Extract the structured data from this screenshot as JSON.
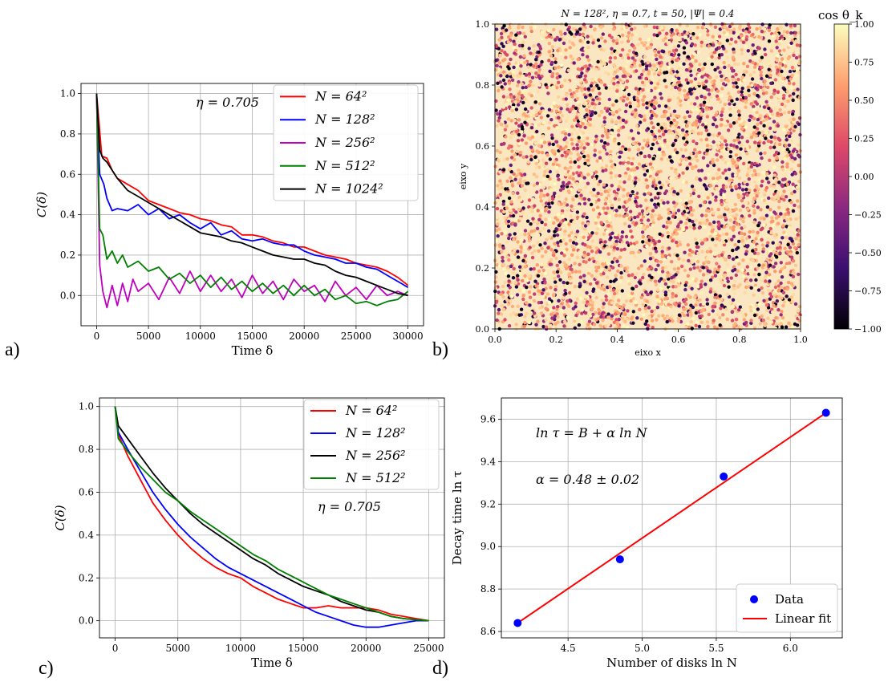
{
  "panel_labels": [
    "a)",
    "b)",
    "c)",
    "d)"
  ],
  "chart_data": [
    {
      "id": "a",
      "type": "line",
      "xlabel": "Time δ",
      "ylabel": "C(δ)",
      "xlim": [
        -1500,
        31500
      ],
      "ylim": [
        -0.15,
        1.05
      ],
      "xticks": [
        0,
        5000,
        10000,
        15000,
        20000,
        25000,
        30000
      ],
      "yticks": [
        0.0,
        0.2,
        0.4,
        0.6,
        0.8,
        1.0
      ],
      "grid": true,
      "legend_position": "top-right",
      "annotation": "η = 0.705",
      "series": [
        {
          "name": "N = 64²",
          "color": "#ff0000",
          "x": [
            0,
            500,
            1000,
            1500,
            2000,
            3000,
            4000,
            5000,
            6000,
            7000,
            8000,
            9000,
            10000,
            11000,
            12000,
            13000,
            14000,
            15000,
            16000,
            17000,
            18000,
            19000,
            20000,
            21000,
            22000,
            23000,
            24000,
            25000,
            26000,
            27000,
            28000,
            29000,
            30000
          ],
          "y": [
            1.0,
            0.69,
            0.68,
            0.62,
            0.58,
            0.55,
            0.52,
            0.47,
            0.45,
            0.43,
            0.41,
            0.4,
            0.38,
            0.37,
            0.35,
            0.34,
            0.3,
            0.3,
            0.29,
            0.27,
            0.26,
            0.24,
            0.24,
            0.22,
            0.2,
            0.19,
            0.18,
            0.16,
            0.15,
            0.14,
            0.12,
            0.09,
            0.05
          ]
        },
        {
          "name": "N = 128²",
          "color": "#0000ff",
          "x": [
            0,
            300,
            700,
            1000,
            1500,
            2000,
            3000,
            4000,
            5000,
            6000,
            7000,
            8000,
            9000,
            10000,
            11000,
            12000,
            13000,
            14000,
            15000,
            16000,
            17000,
            18000,
            19000,
            20000,
            21000,
            22000,
            23000,
            24000,
            25000,
            26000,
            27000,
            28000,
            29000,
            30000
          ],
          "y": [
            1.0,
            0.6,
            0.55,
            0.48,
            0.42,
            0.43,
            0.42,
            0.45,
            0.4,
            0.43,
            0.38,
            0.4,
            0.36,
            0.33,
            0.36,
            0.3,
            0.32,
            0.28,
            0.27,
            0.28,
            0.26,
            0.25,
            0.25,
            0.22,
            0.2,
            0.19,
            0.18,
            0.16,
            0.16,
            0.14,
            0.13,
            0.1,
            0.07,
            0.04
          ]
        },
        {
          "name": "N = 256²",
          "color": "#bf00bf",
          "x": [
            0,
            300,
            600,
            1000,
            1500,
            2000,
            2500,
            3000,
            3500,
            4000,
            5000,
            6000,
            7000,
            8000,
            9000,
            10000,
            11000,
            12000,
            13000,
            14000,
            15000,
            16000,
            17000,
            18000,
            19000,
            20000,
            21000,
            22000,
            23000,
            24000,
            25000,
            26000,
            27000,
            28000,
            29000,
            30000
          ],
          "y": [
            1.0,
            0.15,
            0.02,
            -0.06,
            0.05,
            -0.05,
            0.06,
            -0.03,
            0.08,
            0.02,
            0.06,
            -0.02,
            0.09,
            0.01,
            0.12,
            0.02,
            0.1,
            0.02,
            0.08,
            -0.01,
            0.1,
            0.01,
            0.07,
            -0.02,
            0.08,
            0.02,
            0.05,
            -0.03,
            0.07,
            0.0,
            0.04,
            -0.02,
            0.05,
            0.0,
            0.02,
            0.0
          ]
        },
        {
          "name": "N = 512²",
          "color": "#008000",
          "x": [
            0,
            300,
            600,
            1000,
            1500,
            2000,
            2500,
            3000,
            4000,
            5000,
            6000,
            7000,
            8000,
            9000,
            10000,
            11000,
            12000,
            13000,
            14000,
            15000,
            16000,
            17000,
            18000,
            19000,
            20000,
            21000,
            22000,
            23000,
            24000,
            25000,
            26000,
            27000,
            28000,
            29000,
            30000
          ],
          "y": [
            1.0,
            0.33,
            0.3,
            0.18,
            0.22,
            0.16,
            0.2,
            0.14,
            0.17,
            0.12,
            0.14,
            0.08,
            0.11,
            0.06,
            0.1,
            0.04,
            0.09,
            0.03,
            0.07,
            0.02,
            0.06,
            0.01,
            0.05,
            0.0,
            0.05,
            0.0,
            0.03,
            -0.02,
            0.0,
            -0.04,
            -0.03,
            -0.05,
            -0.03,
            -0.02,
            0.02
          ]
        },
        {
          "name": "N = 1024²",
          "color": "#000000",
          "x": [
            0,
            300,
            600,
            1000,
            2000,
            3000,
            4000,
            5000,
            6000,
            7000,
            8000,
            9000,
            10000,
            11000,
            12000,
            13000,
            14000,
            15000,
            16000,
            17000,
            18000,
            19000,
            20000,
            21000,
            22000,
            23000,
            24000,
            25000,
            26000,
            27000,
            28000,
            29000,
            30000
          ],
          "y": [
            1.0,
            0.72,
            0.68,
            0.66,
            0.58,
            0.52,
            0.49,
            0.46,
            0.43,
            0.4,
            0.37,
            0.34,
            0.31,
            0.3,
            0.29,
            0.27,
            0.26,
            0.24,
            0.22,
            0.2,
            0.19,
            0.18,
            0.18,
            0.16,
            0.15,
            0.12,
            0.1,
            0.09,
            0.07,
            0.05,
            0.03,
            0.01,
            0.0
          ]
        }
      ]
    },
    {
      "id": "b",
      "type": "scatter",
      "title": "N = 128², η = 0.7, t = 50, |Ψ| = 0.4",
      "xlabel": "eixo x",
      "ylabel": "eixo y",
      "xlim": [
        0,
        1
      ],
      "ylim": [
        0,
        1
      ],
      "xticks": [
        0.0,
        0.2,
        0.4,
        0.6,
        0.8,
        1.0
      ],
      "yticks": [
        0.0,
        0.2,
        0.4,
        0.6,
        0.8,
        1.0
      ],
      "colorbar_label": "cos θ_k",
      "colorbar_ticks": [
        1.0,
        0.75,
        0.5,
        0.25,
        0.0,
        -0.25,
        -0.5,
        -0.75,
        -1.0
      ],
      "colormap": "magma",
      "clim": [
        -1,
        1
      ]
    },
    {
      "id": "c",
      "type": "line",
      "xlabel": "Time δ",
      "ylabel": "C(δ)",
      "xlim": [
        -1250,
        26250
      ],
      "ylim": [
        -0.08,
        1.04
      ],
      "xticks": [
        0,
        5000,
        10000,
        15000,
        20000,
        25000
      ],
      "yticks": [
        0.0,
        0.2,
        0.4,
        0.6,
        0.8,
        1.0
      ],
      "grid": true,
      "legend_position": "top-right",
      "annotation": "η = 0.705",
      "series": [
        {
          "name": "N = 64²",
          "color": "#ff0000",
          "x": [
            0,
            250,
            1000,
            2000,
            3000,
            4000,
            5000,
            6000,
            7000,
            8000,
            9000,
            10000,
            11000,
            12000,
            13000,
            14000,
            15000,
            16000,
            17000,
            18000,
            19000,
            20000,
            21000,
            22000,
            23000,
            24000,
            25000
          ],
          "y": [
            1.0,
            0.87,
            0.77,
            0.66,
            0.55,
            0.47,
            0.4,
            0.34,
            0.29,
            0.25,
            0.22,
            0.2,
            0.16,
            0.13,
            0.1,
            0.08,
            0.06,
            0.06,
            0.07,
            0.06,
            0.06,
            0.06,
            0.05,
            0.03,
            0.02,
            0.01,
            0.0
          ]
        },
        {
          "name": "N = 128²",
          "color": "#0000ff",
          "x": [
            0,
            250,
            1000,
            2000,
            3000,
            4000,
            5000,
            6000,
            7000,
            8000,
            9000,
            10000,
            11000,
            12000,
            13000,
            14000,
            15000,
            16000,
            17000,
            18000,
            19000,
            20000,
            21000,
            22000,
            23000,
            24000,
            25000
          ],
          "y": [
            1.0,
            0.88,
            0.8,
            0.7,
            0.6,
            0.52,
            0.45,
            0.39,
            0.34,
            0.29,
            0.25,
            0.22,
            0.19,
            0.16,
            0.13,
            0.1,
            0.07,
            0.04,
            0.02,
            0.0,
            -0.02,
            -0.03,
            -0.03,
            -0.02,
            -0.01,
            0.0,
            0.0
          ]
        },
        {
          "name": "N = 256²",
          "color": "#000000",
          "x": [
            0,
            250,
            1000,
            2000,
            3000,
            4000,
            5000,
            6000,
            7000,
            8000,
            9000,
            10000,
            11000,
            12000,
            13000,
            14000,
            15000,
            16000,
            17000,
            18000,
            19000,
            20000,
            21000,
            22000,
            23000,
            24000,
            25000
          ],
          "y": [
            1.0,
            0.91,
            0.85,
            0.77,
            0.69,
            0.62,
            0.56,
            0.5,
            0.45,
            0.41,
            0.37,
            0.33,
            0.29,
            0.26,
            0.22,
            0.19,
            0.16,
            0.14,
            0.12,
            0.09,
            0.07,
            0.05,
            0.04,
            0.02,
            0.01,
            0.005,
            0.0
          ]
        },
        {
          "name": "N = 512²",
          "color": "#008000",
          "x": [
            0,
            250,
            1000,
            2000,
            3000,
            4000,
            5000,
            6000,
            7000,
            8000,
            9000,
            10000,
            11000,
            12000,
            13000,
            14000,
            15000,
            16000,
            17000,
            18000,
            19000,
            20000,
            21000,
            22000,
            23000,
            24000,
            25000
          ],
          "y": [
            1.0,
            0.85,
            0.79,
            0.72,
            0.66,
            0.6,
            0.56,
            0.51,
            0.47,
            0.43,
            0.39,
            0.35,
            0.31,
            0.28,
            0.24,
            0.21,
            0.18,
            0.15,
            0.12,
            0.1,
            0.08,
            0.06,
            0.04,
            0.02,
            0.01,
            0.005,
            0.0
          ]
        }
      ]
    },
    {
      "id": "d",
      "type": "scatter",
      "xlabel": "Number of disks ln N",
      "ylabel": "Decay time ln τ",
      "xlim": [
        4.05,
        6.35
      ],
      "ylim": [
        8.57,
        9.7
      ],
      "xticks": [
        4.5,
        5.0,
        5.5,
        6.0
      ],
      "yticks": [
        8.6,
        8.8,
        9.0,
        9.2,
        9.4,
        9.6
      ],
      "grid": true,
      "legend_position": "bottom-right",
      "annotation_1": "ln τ = B + α ln N",
      "annotation_2": "α = 0.48 ± 0.02",
      "series": [
        {
          "name": "Data",
          "color": "#0000ff",
          "x": [
            4.16,
            4.85,
            5.55,
            6.24
          ],
          "y": [
            8.64,
            8.94,
            9.33,
            9.63
          ]
        },
        {
          "name": "Linear fit",
          "color": "#ff0000",
          "x": [
            4.16,
            6.24
          ],
          "y": [
            8.64,
            9.63
          ]
        }
      ]
    }
  ]
}
